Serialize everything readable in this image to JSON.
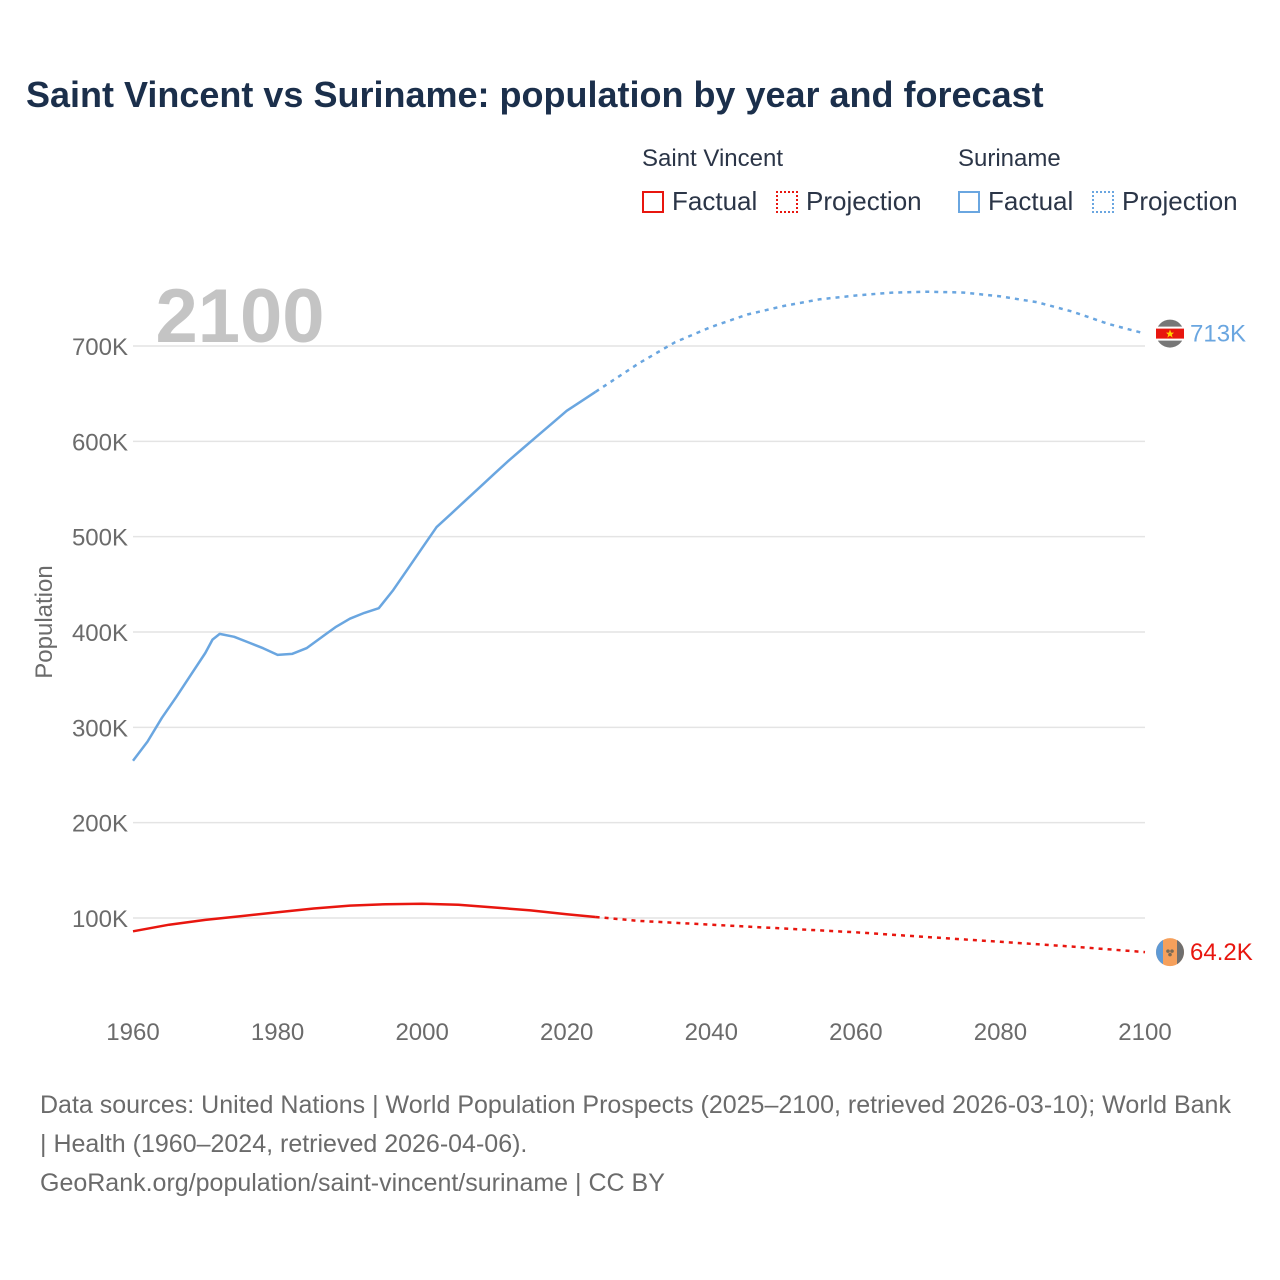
{
  "title": "Saint Vincent vs Suriname: population by year and forecast",
  "legend": {
    "groups": [
      {
        "name": "Saint Vincent",
        "color": "#e8160f",
        "factual_label": "Factual",
        "projection_label": "Projection"
      },
      {
        "name": "Suriname",
        "color": "#6aa6e0",
        "factual_label": "Factual",
        "projection_label": "Projection"
      }
    ]
  },
  "chart_data": {
    "type": "line",
    "title": "Saint Vincent vs Suriname: population by year and forecast",
    "xlabel": "",
    "ylabel": "Population",
    "xlim": [
      1960,
      2100
    ],
    "ylim": [
      0,
      780000
    ],
    "x_ticks": [
      1960,
      1980,
      2000,
      2020,
      2040,
      2060,
      2080,
      2100
    ],
    "x_tick_labels": [
      "1960",
      "1980",
      "2000",
      "2020",
      "2040",
      "2060",
      "2080",
      "2100"
    ],
    "y_ticks": [
      100000,
      200000,
      300000,
      400000,
      500000,
      600000,
      700000
    ],
    "y_tick_labels": [
      "100K",
      "200K",
      "300K",
      "400K",
      "500K",
      "600K",
      "700K"
    ],
    "grid": true,
    "year_label": "2100",
    "factual_range": "1960–2024",
    "projection_range": "2024–2100",
    "series": [
      {
        "name": "Suriname",
        "color": "#6aa6e0",
        "end_label": "713K",
        "factual": {
          "x": [
            1960,
            1962,
            1964,
            1966,
            1968,
            1970,
            1971,
            1972,
            1974,
            1976,
            1978,
            1980,
            1982,
            1984,
            1986,
            1988,
            1990,
            1992,
            1994,
            1996,
            1998,
            2000,
            2002,
            2004,
            2006,
            2008,
            2010,
            2012,
            2014,
            2016,
            2018,
            2020,
            2022,
            2024
          ],
          "y": [
            265000,
            285000,
            310000,
            332000,
            355000,
            378000,
            392000,
            398000,
            395000,
            389000,
            383000,
            376000,
            377000,
            383000,
            394000,
            405000,
            414000,
            420000,
            425000,
            444000,
            466000,
            488000,
            510000,
            524000,
            538000,
            552000,
            566000,
            580000,
            593000,
            606000,
            619000,
            632000,
            642000,
            652000
          ]
        },
        "projection": {
          "x": [
            2024,
            2030,
            2035,
            2040,
            2045,
            2050,
            2055,
            2060,
            2065,
            2070,
            2075,
            2080,
            2085,
            2090,
            2095,
            2100
          ],
          "y": [
            652000,
            682000,
            704000,
            720000,
            733000,
            742000,
            749000,
            753000,
            756000,
            757000,
            756000,
            752000,
            746000,
            736000,
            723000,
            713000
          ]
        }
      },
      {
        "name": "Saint Vincent",
        "color": "#e8160f",
        "end_label": "64.2K",
        "factual": {
          "x": [
            1960,
            1965,
            1970,
            1975,
            1980,
            1985,
            1990,
            1995,
            2000,
            2005,
            2010,
            2015,
            2020,
            2024
          ],
          "y": [
            86000,
            93000,
            98000,
            102000,
            106000,
            110000,
            113000,
            114500,
            115000,
            114000,
            111000,
            108000,
            104000,
            101000
          ]
        },
        "projection": {
          "x": [
            2024,
            2030,
            2040,
            2050,
            2060,
            2070,
            2080,
            2090,
            2100
          ],
          "y": [
            101000,
            97000,
            93000,
            89000,
            85000,
            80000,
            75000,
            70000,
            64200
          ]
        }
      }
    ]
  },
  "footer": {
    "sources": "Data sources: United Nations | World Population Prospects (2025–2100, retrieved 2026-03-10); World Bank | Health (1960–2024, retrieved 2026-04-06).",
    "credit": "GeoRank.org/population/saint-vincent/suriname | CC BY"
  }
}
